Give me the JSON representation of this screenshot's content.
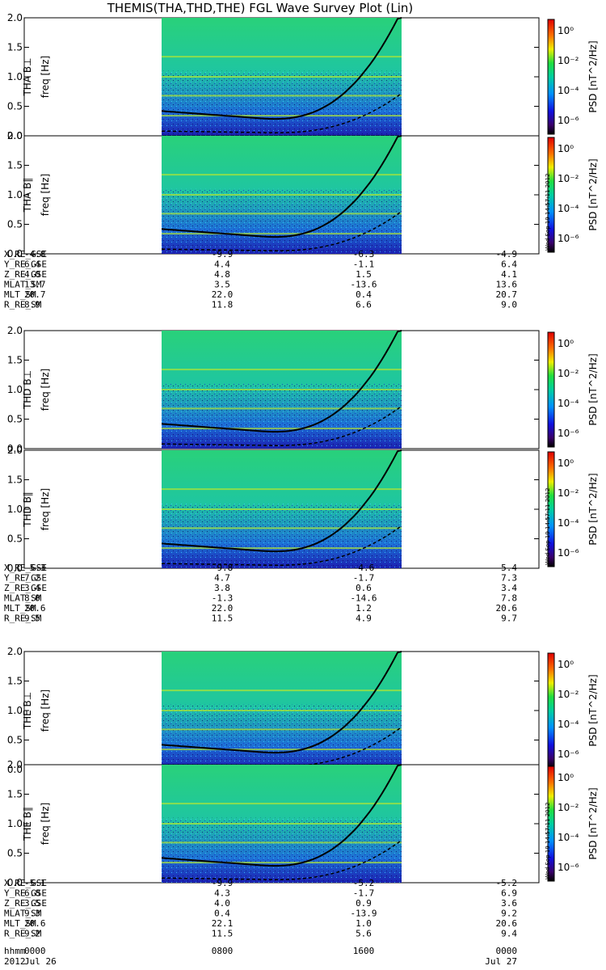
{
  "chart_data": {
    "type": "heatmap",
    "title": "THEMIS(THA,THD,THE) FGL Wave Survey Plot (Lin)",
    "time_axis": {
      "row_labels": [
        "hhmm",
        "2012"
      ],
      "ticks": [
        {
          "hhmm": "0000",
          "date": "Jul 26"
        },
        {
          "hhmm": "0800",
          "date": ""
        },
        {
          "hhmm": "1600",
          "date": ""
        },
        {
          "hhmm": "0000",
          "date": "Jul 27"
        }
      ]
    },
    "freq_axis": {
      "label": "freq [Hz]",
      "range": [
        0.0,
        2.0
      ],
      "ticks": [
        "0.0",
        "0.5",
        "1.0",
        "1.5",
        "2.0"
      ]
    },
    "colorbar": {
      "label": "PSD [nT^2/Hz]",
      "scale": "log",
      "ticks": [
        "10^0",
        "10^-2",
        "10^-4",
        "10^-6"
      ]
    },
    "timestamp": "Wed Sep 19 14:57:11 2012",
    "probes": [
      {
        "panels": [
          "THA B⊥",
          "THA B∥"
        ],
        "ephemeris": [
          {
            "name": "X_RE_GSE",
            "values": [
              "-4.8",
              "-9.9",
              "-6.3",
              "-4.9"
            ]
          },
          {
            "name": "Y_RE_GSE",
            "values": [
              "6.4",
              "4.4",
              "-1.1",
              "6.4"
            ]
          },
          {
            "name": "Z_RE_GSE",
            "values": [
              "4.0",
              "4.8",
              "1.5",
              "4.1"
            ]
          },
          {
            "name": "MLAT_SM",
            "values": [
              "13.7",
              "3.5",
              "-13.6",
              "13.6"
            ]
          },
          {
            "name": "MLT_SM",
            "values": [
              "20.7",
              "22.0",
              "0.4",
              "20.7"
            ]
          },
          {
            "name": "R_RE_SM",
            "values": [
              "8.9",
              "11.8",
              "6.6",
              "9.0"
            ]
          }
        ]
      },
      {
        "panels": [
          "THD B⊥",
          "THD B∥"
        ],
        "ephemeris": [
          {
            "name": "X_RE_GSE",
            "values": [
              "-5.3",
              "-9.8",
              "-4.6",
              "-5.4"
            ]
          },
          {
            "name": "Y_RE_GSE",
            "values": [
              "7.2",
              "4.7",
              "-1.7",
              "7.3"
            ]
          },
          {
            "name": "Z_RE_GSE",
            "values": [
              "3.4",
              "3.8",
              "0.6",
              "3.4"
            ]
          },
          {
            "name": "MLAT_SM",
            "values": [
              "8.0",
              "-1.3",
              "-14.6",
              "7.8"
            ]
          },
          {
            "name": "MLT_SM",
            "values": [
              "20.6",
              "22.0",
              "1.2",
              "20.6"
            ]
          },
          {
            "name": "R_RE_SM",
            "values": [
              "9.5",
              "11.5",
              "4.9",
              "9.7"
            ]
          }
        ]
      },
      {
        "panels": [
          "THE B⊥",
          "THE B∥"
        ],
        "ephemeris": [
          {
            "name": "X_RE_GSE",
            "values": [
              "-5.1",
              "-9.9",
              "-5.2",
              "-5.2"
            ]
          },
          {
            "name": "Y_RE_GSE",
            "values": [
              "6.8",
              "4.3",
              "-1.7",
              "6.9"
            ]
          },
          {
            "name": "Z_RE_GSE",
            "values": [
              "3.5",
              "4.0",
              "0.9",
              "3.6"
            ]
          },
          {
            "name": "MLAT_SM",
            "values": [
              "9.3",
              "0.4",
              "-13.9",
              "9.2"
            ]
          },
          {
            "name": "MLT_SM",
            "values": [
              "20.6",
              "22.1",
              "1.0",
              "20.6"
            ]
          },
          {
            "name": "R_RE_SM",
            "values": [
              "9.2",
              "11.5",
              "5.6",
              "9.4"
            ]
          }
        ]
      }
    ]
  }
}
